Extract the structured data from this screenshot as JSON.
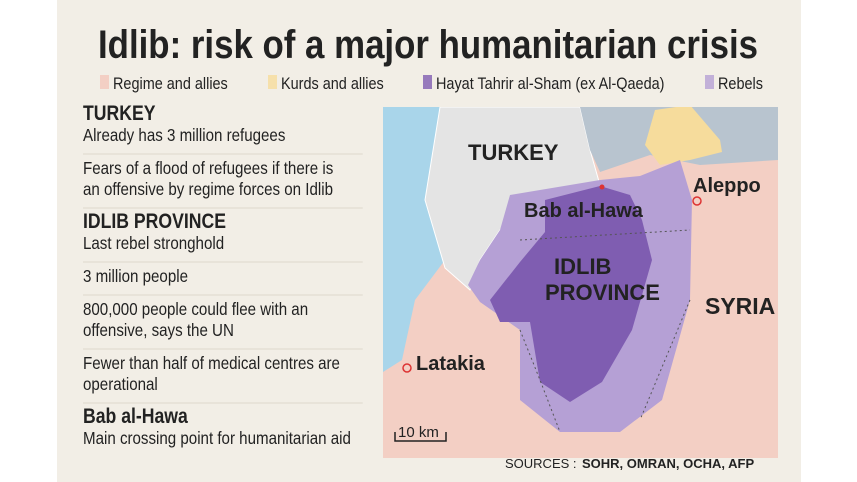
{
  "title": "Idlib: risk of a major humanitarian crisis",
  "legend": [
    {
      "label": "Regime and allies",
      "color": "#f3c7bb"
    },
    {
      "label": "Kurds and allies",
      "color": "#f6dc9c"
    },
    {
      "label": "Hayat Tahrir al-Sham (ex Al-Qaeda)",
      "color": "#7f5db1"
    },
    {
      "label": "Rebels",
      "color": "#b5a0d5"
    }
  ],
  "sections": [
    {
      "heading": "TURKEY",
      "items": [
        [
          "Already has 3 million refugees"
        ],
        [
          "Fears of a flood of refugees if there is",
          "an offensive by regime forces on Idlib"
        ]
      ]
    },
    {
      "heading": "IDLIB PROVINCE",
      "items": [
        [
          "Last rebel stronghold"
        ],
        [
          "3 million people"
        ],
        [
          "800,000 people could flee with an",
          "offensive, says the UN"
        ],
        [
          "Fewer than half of medical centres are",
          "operational"
        ]
      ]
    },
    {
      "heading": "Bab al-Hawa",
      "items": [
        [
          "Main crossing point for humanitarian aid"
        ]
      ]
    }
  ],
  "map": {
    "labels": {
      "turkey": "TURKEY",
      "bab_al_hawa": "Bab al-Hawa",
      "aleppo": "Aleppo",
      "idlib": [
        "IDLIB",
        "PROVINCE"
      ],
      "syria": "SYRIA",
      "latakia": "Latakia"
    },
    "scale": "10 km"
  },
  "sources": {
    "label": "SOURCES : ",
    "names": "SOHR, OMRAN, OCHA,  AFP"
  }
}
